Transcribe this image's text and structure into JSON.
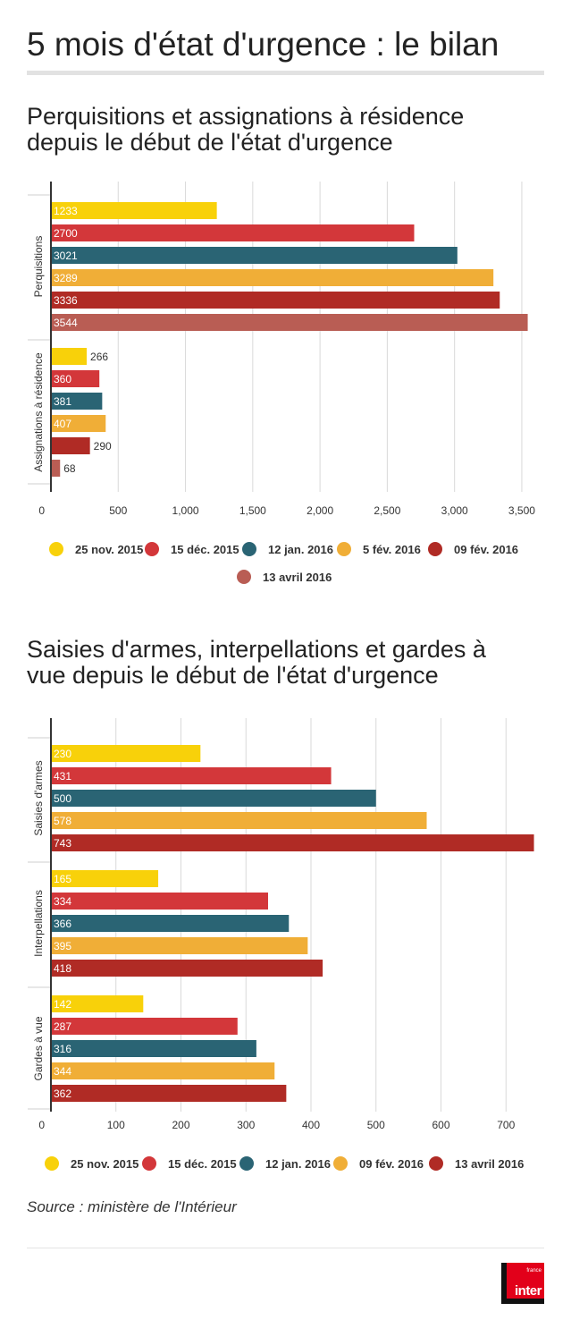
{
  "header": {
    "title": "5 mois d'état d'urgence : le bilan"
  },
  "colors": {
    "25 nov. 2015": "#f8d10a",
    "15 déc. 2015": "#d3373a",
    "12 jan. 2016": "#2a6474",
    "5 fév. 2016": "#f0ae37",
    "09 fév. 2016": "#b02b25",
    "13 avril 2016": "#b95d54"
  },
  "chart_data": [
    {
      "type": "bar",
      "orientation": "horizontal",
      "title": "Perquisitions et assignations à résidence depuis le début de l'état d'urgence",
      "groups": [
        "Perquisitions",
        "Assignations à résidence"
      ],
      "series": [
        {
          "name": "25 nov. 2015",
          "color": "#f8d10a",
          "values": [
            1233,
            266
          ]
        },
        {
          "name": "15 déc. 2015",
          "color": "#d3373a",
          "values": [
            2700,
            360
          ]
        },
        {
          "name": "12 jan. 2016",
          "color": "#2a6474",
          "values": [
            3021,
            381
          ]
        },
        {
          "name": "5 fév. 2016",
          "color": "#f0ae37",
          "values": [
            3289,
            407
          ]
        },
        {
          "name": "09 fév. 2016",
          "color": "#b02b25",
          "values": [
            3336,
            290
          ]
        },
        {
          "name": "13 avril 2016",
          "color": "#b95d54",
          "values": [
            3544,
            68
          ]
        }
      ],
      "xlim": [
        0,
        3600
      ],
      "xticks": [
        0,
        500,
        1000,
        1500,
        2000,
        2500,
        3000,
        3500
      ],
      "xtick_labels": [
        "0",
        "500",
        "1,000",
        "1,500",
        "2,000",
        "2,500",
        "3,000",
        "3,500"
      ],
      "grid": true,
      "legend": [
        "25 nov. 2015",
        "15 déc. 2015",
        "12 jan. 2016",
        "5 fév. 2016",
        "09 fév. 2016",
        "13 avril 2016"
      ],
      "legend_position": "bottom"
    },
    {
      "type": "bar",
      "orientation": "horizontal",
      "title": "Saisies d'armes, interpellations et gardes à vue depuis le début de l'état d'urgence",
      "groups": [
        "Saisies d'armes",
        "Interpellations",
        "Gardes à vue"
      ],
      "series": [
        {
          "name": "25 nov. 2015",
          "color": "#f8d10a",
          "values": [
            230,
            165,
            142
          ]
        },
        {
          "name": "15 déc. 2015",
          "color": "#d3373a",
          "values": [
            431,
            334,
            287
          ]
        },
        {
          "name": "12 jan. 2016",
          "color": "#2a6474",
          "values": [
            500,
            366,
            316
          ]
        },
        {
          "name": "09 fév. 2016",
          "color": "#f0ae37",
          "values": [
            578,
            395,
            344
          ]
        },
        {
          "name": "13 avril 2016",
          "color": "#b02b25",
          "values": [
            743,
            418,
            362
          ]
        }
      ],
      "xlim": [
        0,
        745
      ],
      "xticks": [
        0,
        100,
        200,
        300,
        400,
        500,
        600,
        700
      ],
      "xtick_labels": [
        "0",
        "100",
        "200",
        "300",
        "400",
        "500",
        "600",
        "700"
      ],
      "grid": true,
      "legend": [
        "25 nov. 2015",
        "15 déc. 2015",
        "12 jan. 2016",
        "09 fév. 2016",
        "13 avril 2016"
      ],
      "legend_position": "bottom"
    }
  ],
  "footer": {
    "source": "Source : ministère de l'Intérieur",
    "logo_word": "inter",
    "logo_small": "france"
  }
}
